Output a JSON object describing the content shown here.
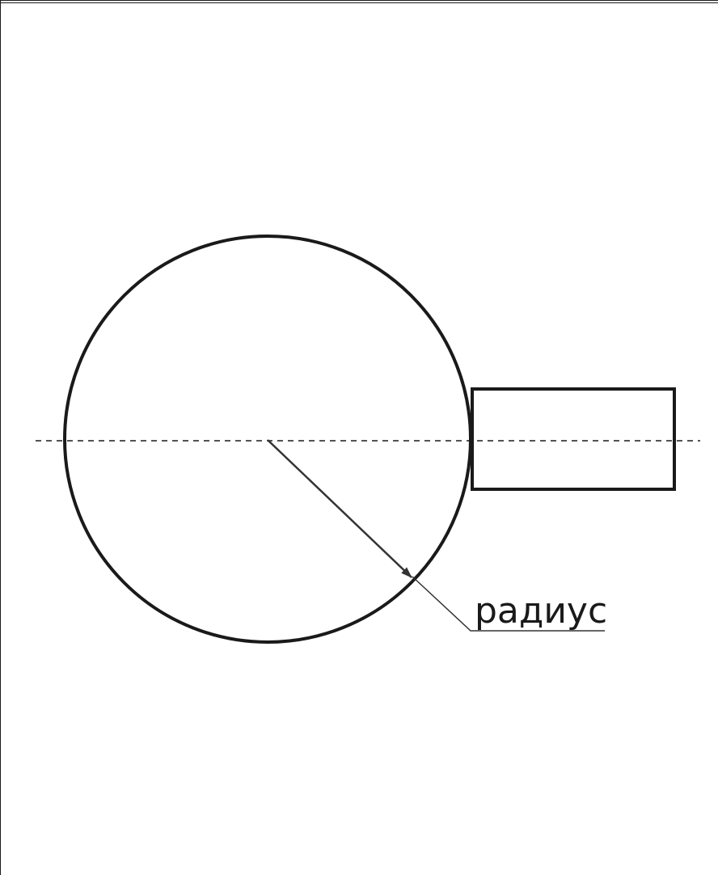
{
  "diagram": {
    "label": "радиус",
    "stroke_color": "#1a1a1a",
    "arrow_color": "#333333",
    "background": "#ffffff"
  }
}
